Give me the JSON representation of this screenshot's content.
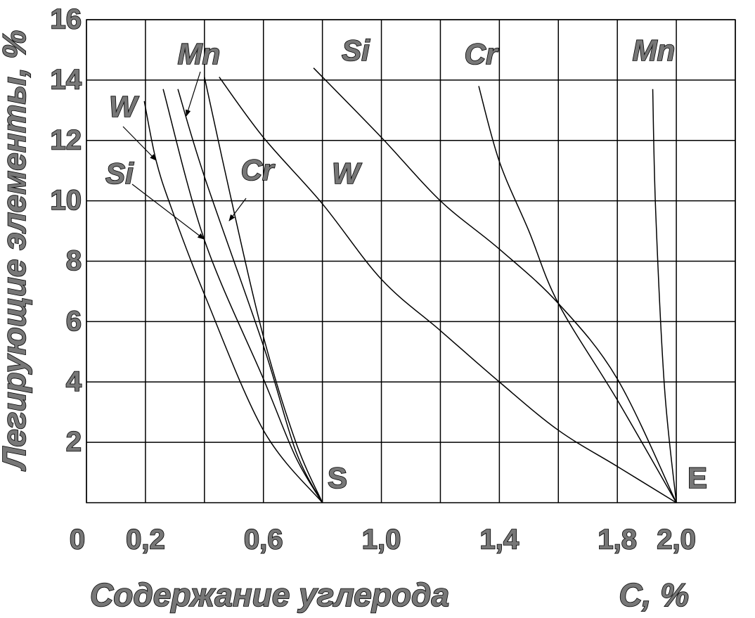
{
  "chart_data": {
    "type": "line",
    "xlabel": "Содержание углерода",
    "xunit_label": "С, %",
    "ylabel": "Легирующие элементы, %",
    "xlim": [
      0,
      2.2
    ],
    "ylim": [
      0,
      16
    ],
    "xticks": [
      0,
      {
        "value": 0.2,
        "label": "0,2"
      },
      {
        "value": 0.6,
        "label": "0,6"
      },
      {
        "value": 1.0,
        "label": "1,0"
      },
      {
        "value": 1.4,
        "label": "1,4"
      },
      {
        "value": 1.8,
        "label": "1,8"
      },
      {
        "value": 2.0,
        "label": "2,0"
      }
    ],
    "xgrid": [
      0.4,
      0.8,
      1.2,
      1.6,
      2.2
    ],
    "yticks": [
      2,
      4,
      6,
      8,
      10,
      12,
      14,
      16
    ],
    "grid": true,
    "series": [
      {
        "name": "W",
        "color": "#000000",
        "x": [
          0.196,
          0.237,
          0.292,
          0.4,
          0.6,
          0.8
        ],
        "y": [
          13.3,
          11.3,
          9.65,
          6.9,
          2.4,
          0
        ]
      },
      {
        "name": "Si",
        "color": "#000000",
        "x": [
          0.26,
          0.4,
          0.6,
          0.71,
          0.8
        ],
        "y": [
          13.7,
          8.7,
          4.1,
          1.5,
          0
        ]
      },
      {
        "name": "Mn",
        "color": "#000000",
        "x": [
          0.31,
          0.4,
          0.6,
          0.71,
          0.8
        ],
        "y": [
          13.7,
          10.8,
          5.2,
          1.7,
          0
        ]
      },
      {
        "name": "Cr",
        "color": "#000000",
        "x": [
          0.4,
          0.5,
          0.6,
          0.71,
          0.8
        ],
        "y": [
          14.1,
          9.65,
          5.5,
          2.0,
          0
        ]
      },
      {
        "name": "Si",
        "color": "#000000",
        "x": [
          0.77,
          1.0,
          1.2,
          1.4,
          1.6,
          1.8,
          2.0
        ],
        "y": [
          14.4,
          12.1,
          10.0,
          8.4,
          6.6,
          4.1,
          0
        ]
      },
      {
        "name": "Cr",
        "color": "#000000",
        "x": [
          1.33,
          1.4,
          1.5,
          1.6,
          1.8,
          2.0
        ],
        "y": [
          13.8,
          11.3,
          9.0,
          6.6,
          3.4,
          0
        ]
      },
      {
        "name": "Mn",
        "color": "#000000",
        "x": [
          1.92,
          1.93,
          1.96,
          2.0
        ],
        "y": [
          13.7,
          9.65,
          3.8,
          0
        ]
      },
      {
        "name": "W",
        "color": "#000000",
        "x": [
          0.45,
          0.6,
          0.8,
          1.0,
          1.2,
          1.4,
          1.6,
          1.8,
          2.0
        ],
        "y": [
          14.1,
          12.1,
          9.9,
          7.4,
          5.7,
          4.0,
          2.4,
          1.2,
          0
        ]
      }
    ],
    "annotations": [
      {
        "label": "S"
      },
      {
        "label": "E"
      }
    ]
  }
}
